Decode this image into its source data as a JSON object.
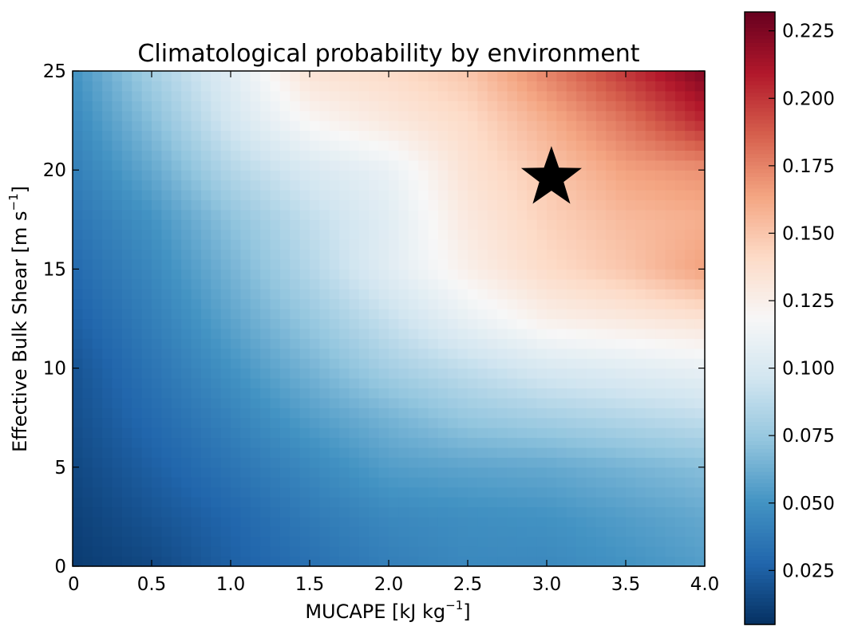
{
  "chart_data": {
    "type": "heatmap",
    "title": "Climatological probability by environment",
    "xlabel": "MUCAPE [kJ kg",
    "xlabel_sup": "−1",
    "xlabel_end": "]",
    "ylabel": "Effective Bulk Shear [m s",
    "ylabel_sup": "−1",
    "ylabel_end": "]",
    "xlim": [
      0,
      4.0
    ],
    "ylim": [
      0,
      25
    ],
    "x_ticks": [
      0,
      0.5,
      1.0,
      1.5,
      2.0,
      2.5,
      3.0,
      3.5,
      4.0
    ],
    "x_tick_labels": [
      "0",
      "0.5",
      "1.0",
      "1.5",
      "2.0",
      "2.5",
      "3.0",
      "3.5",
      "4.0"
    ],
    "y_ticks": [
      0,
      5,
      10,
      15,
      20,
      25
    ],
    "y_tick_labels": [
      "0",
      "5",
      "10",
      "15",
      "20",
      "25"
    ],
    "grid": false,
    "colormap": "RdBu_r",
    "colorbar": {
      "range": [
        0.005,
        0.232
      ],
      "ticks": [
        0.025,
        0.05,
        0.075,
        0.1,
        0.125,
        0.15,
        0.175,
        0.2,
        0.225
      ],
      "tick_labels": [
        "0.025",
        "0.050",
        "0.075",
        "0.100",
        "0.125",
        "0.150",
        "0.175",
        "0.200",
        "0.225"
      ]
    },
    "grid_x": [
      0,
      0.5,
      1.0,
      1.5,
      2.0,
      2.5,
      3.0,
      3.5,
      4.0
    ],
    "grid_y": [
      0,
      2.5,
      5,
      7.5,
      10,
      12.5,
      15,
      17.5,
      20,
      22.5,
      25
    ],
    "values": [
      [
        0.01,
        0.015,
        0.025,
        0.033,
        0.04,
        0.045,
        0.045,
        0.05,
        0.055
      ],
      [
        0.012,
        0.02,
        0.028,
        0.038,
        0.045,
        0.048,
        0.05,
        0.055,
        0.06
      ],
      [
        0.015,
        0.025,
        0.035,
        0.045,
        0.055,
        0.058,
        0.06,
        0.065,
        0.07
      ],
      [
        0.018,
        0.03,
        0.042,
        0.055,
        0.065,
        0.075,
        0.08,
        0.085,
        0.09
      ],
      [
        0.02,
        0.035,
        0.05,
        0.065,
        0.08,
        0.09,
        0.1,
        0.105,
        0.11
      ],
      [
        0.025,
        0.04,
        0.058,
        0.075,
        0.092,
        0.11,
        0.125,
        0.13,
        0.135
      ],
      [
        0.03,
        0.045,
        0.065,
        0.085,
        0.105,
        0.125,
        0.14,
        0.15,
        0.165
      ],
      [
        0.035,
        0.05,
        0.072,
        0.09,
        0.105,
        0.13,
        0.145,
        0.155,
        0.16
      ],
      [
        0.04,
        0.06,
        0.085,
        0.1,
        0.11,
        0.135,
        0.15,
        0.165,
        0.17
      ],
      [
        0.045,
        0.07,
        0.098,
        0.12,
        0.13,
        0.14,
        0.16,
        0.18,
        0.205
      ],
      [
        0.05,
        0.08,
        0.105,
        0.135,
        0.14,
        0.15,
        0.175,
        0.2,
        0.225
      ]
    ],
    "marker": {
      "shape": "star",
      "x": 3.03,
      "y": 19.6,
      "color": "#000000"
    }
  }
}
